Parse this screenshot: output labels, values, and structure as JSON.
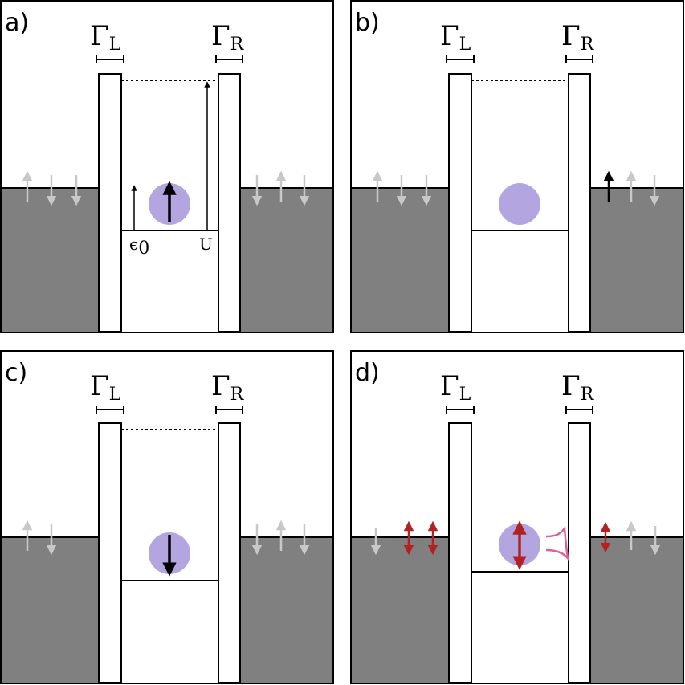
{
  "colors": {
    "lead": "#808080",
    "dot": "#b3a6e0",
    "spin_grey": "#c8c8c8",
    "spin_black": "#000000",
    "spin_red": "#b22222",
    "wave": "#e0609a"
  },
  "panels": {
    "a": {
      "label": "a)",
      "gamma_left": "Γ",
      "gamma_left_sub": "L",
      "gamma_right": "Γ",
      "gamma_right_sub": "R",
      "eps_label": "ϵ",
      "eps_sub": "0",
      "u_label": "U"
    },
    "b": {
      "label": "b)",
      "gamma_left": "Γ",
      "gamma_left_sub": "L",
      "gamma_right": "Γ",
      "gamma_right_sub": "R"
    },
    "c": {
      "label": "c)",
      "gamma_left": "Γ",
      "gamma_left_sub": "L",
      "gamma_right": "Γ",
      "gamma_right_sub": "R"
    },
    "d": {
      "label": "d)",
      "gamma_left": "Γ",
      "gamma_left_sub": "L",
      "gamma_right": "Γ",
      "gamma_right_sub": "R"
    }
  }
}
